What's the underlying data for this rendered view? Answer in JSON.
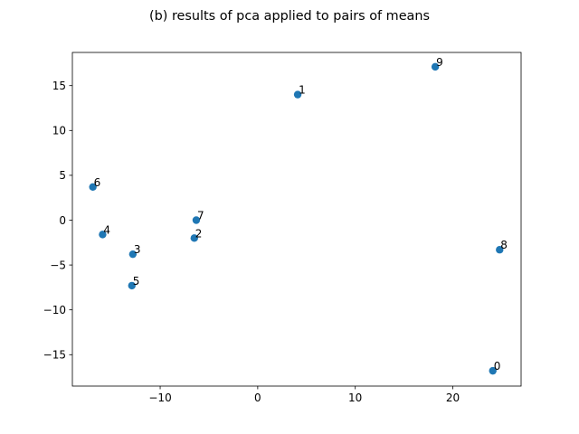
{
  "chart_data": {
    "type": "scatter",
    "title": "(b) results of pca applied to pairs of means",
    "xlabel": "",
    "ylabel": "",
    "xlim": [
      -19,
      27
    ],
    "ylim": [
      -18.5,
      18.7
    ],
    "xticks": [
      -10,
      0,
      10,
      20
    ],
    "xtick_labels": [
      "−10",
      "0",
      "10",
      "20"
    ],
    "yticks": [
      -15,
      -10,
      -5,
      0,
      5,
      10,
      15
    ],
    "ytick_labels": [
      "−15",
      "−10",
      "−5",
      "0",
      "5",
      "10",
      "15"
    ],
    "grid": false,
    "marker_color": "#1f77b4",
    "points": [
      {
        "label": "0",
        "x": 24.1,
        "y": -16.8
      },
      {
        "label": "1",
        "x": 4.1,
        "y": 14.0
      },
      {
        "label": "2",
        "x": -6.5,
        "y": -2.0
      },
      {
        "label": "3",
        "x": -12.8,
        "y": -3.8
      },
      {
        "label": "4",
        "x": -15.9,
        "y": -1.6
      },
      {
        "label": "5",
        "x": -12.9,
        "y": -7.3
      },
      {
        "label": "6",
        "x": -16.9,
        "y": 3.7
      },
      {
        "label": "7",
        "x": -6.3,
        "y": 0.0
      },
      {
        "label": "8",
        "x": 24.8,
        "y": -3.3
      },
      {
        "label": "9",
        "x": 18.2,
        "y": 17.1
      }
    ]
  }
}
